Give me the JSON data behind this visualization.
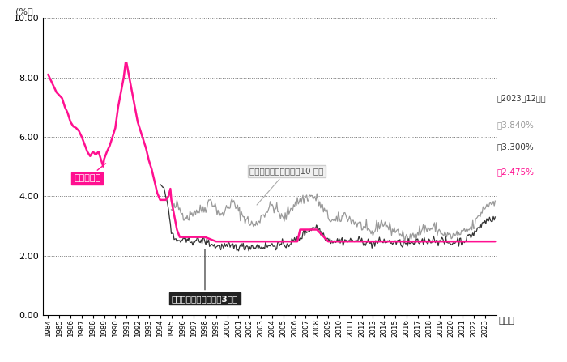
{
  "ylabel_left": "(%）",
  "xlabel_note": "（年）",
  "ylim": [
    0.0,
    10.0
  ],
  "yticks": [
    0.0,
    2.0,
    4.0,
    6.0,
    8.0,
    10.0
  ],
  "bg_color": "#ffffff",
  "grid_color": "#777777",
  "line_variable_color": "#FF1090",
  "line_10yr_color": "#999999",
  "line_3yr_color": "#333333",
  "label_variable": "変動金利型",
  "label_10yr": "固定金利期間選択型（10 年）",
  "label_3yr": "固定金利期間選択型（3年）",
  "note_date": "（2023年12月）",
  "val_variable": "年2.475%",
  "val_10yr": "年3.840%",
  "val_3yr": "年3.300%"
}
